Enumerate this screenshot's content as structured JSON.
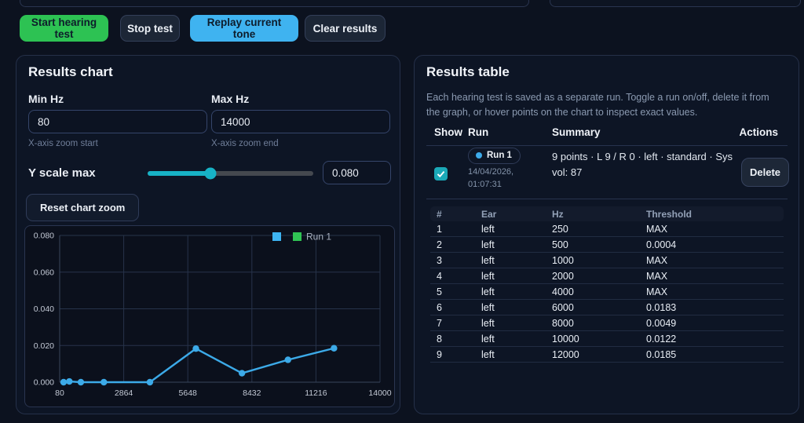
{
  "toolbar": {
    "buttons": [
      {
        "label": "Start hearing test"
      },
      {
        "label": "Stop test"
      },
      {
        "label": "Replay current tone"
      },
      {
        "label": "Clear results"
      }
    ]
  },
  "chart_panel": {
    "title": "Results chart",
    "min_hz": {
      "label": "Min Hz",
      "value": "80",
      "hint": "X-axis zoom start"
    },
    "max_hz": {
      "label": "Max Hz",
      "value": "14000",
      "hint": "X-axis zoom end"
    },
    "y_scale": {
      "label": "Y scale max",
      "value": "0.080"
    },
    "reset_button": "Reset chart zoom"
  },
  "chart_data": {
    "type": "line",
    "series": [
      {
        "name": "Run 1",
        "x": [
          250,
          500,
          1000,
          2000,
          4000,
          6000,
          8000,
          10000,
          12000
        ],
        "y": [
          0,
          0.0004,
          0,
          0,
          0,
          0.0183,
          0.0049,
          0.0122,
          0.0185
        ],
        "color": "#3caae8"
      }
    ],
    "xlim": [
      80,
      14000
    ],
    "ylim": [
      0,
      0.08
    ],
    "x_ticks": [
      80,
      2864,
      5648,
      8432,
      11216,
      14000
    ],
    "y_ticks": [
      0,
      0.02,
      0.04,
      0.06,
      0.08
    ],
    "grid": true,
    "legend": {
      "position": "top-right",
      "label": "Run 1",
      "marker_colors": [
        "#3db4f2",
        "#30c454"
      ]
    }
  },
  "results_panel": {
    "title": "Results table",
    "description": "Each hearing test is saved as a separate run. Toggle a run on/off, delete it from the graph, or hover points on the chart to inspect exact values.",
    "columns": [
      "Show",
      "Run",
      "Summary",
      "Actions"
    ],
    "run": {
      "checked": true,
      "badge": "Run 1",
      "date_line1": "14/04/2026,",
      "date_line2": "01:07:31",
      "summary": "9 points · L 9 / R 0 · left · standard · Sys vol: 87",
      "delete_label": "Delete"
    },
    "table": {
      "headers": [
        "#",
        "Ear",
        "Hz",
        "Threshold"
      ],
      "rows": [
        [
          "1",
          "left",
          "250",
          "MAX"
        ],
        [
          "2",
          "left",
          "500",
          "0.0004"
        ],
        [
          "3",
          "left",
          "1000",
          "MAX"
        ],
        [
          "4",
          "left",
          "2000",
          "MAX"
        ],
        [
          "5",
          "left",
          "4000",
          "MAX"
        ],
        [
          "6",
          "left",
          "6000",
          "0.0183"
        ],
        [
          "7",
          "left",
          "8000",
          "0.0049"
        ],
        [
          "8",
          "left",
          "10000",
          "0.0122"
        ],
        [
          "9",
          "left",
          "12000",
          "0.0185"
        ]
      ]
    }
  },
  "colors": {
    "background": "#0c121f",
    "panel_border": "#253049",
    "accent_green": "#2dc253",
    "accent_blue": "#3fb3f0",
    "accent_teal": "#17b2c6",
    "chart_line": "#3caae8",
    "legend_green": "#30c454"
  }
}
